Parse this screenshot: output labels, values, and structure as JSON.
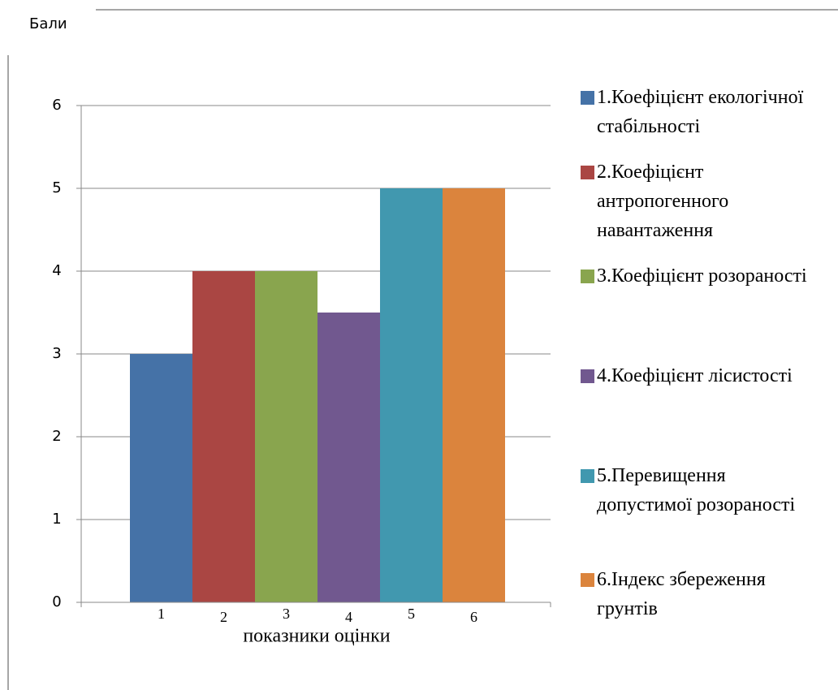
{
  "chart_data": {
    "type": "bar",
    "y_label": "Бали",
    "x_label": "показники оцінки",
    "categories": [
      "1",
      "2",
      "3",
      "4",
      "5",
      "6"
    ],
    "values": [
      3,
      4,
      4,
      3.5,
      5,
      5
    ],
    "colors": [
      "#4572a7",
      "#aa4643",
      "#89a54e",
      "#71588f",
      "#4198af",
      "#db843d"
    ],
    "legend": [
      "1.Коефіцієнт екологічної стабільності",
      "2.Коефіцієнт антропогенного навантаження",
      "3.Коефіцієнт розораності",
      "4.Коефіцієнт лісистості",
      "5.Перевищення допустимої розораності",
      "6.Індекс збереження грунтів"
    ],
    "ylim": [
      0,
      6
    ],
    "yticks": [
      0,
      1,
      2,
      3,
      4,
      5,
      6
    ],
    "grid": true
  }
}
